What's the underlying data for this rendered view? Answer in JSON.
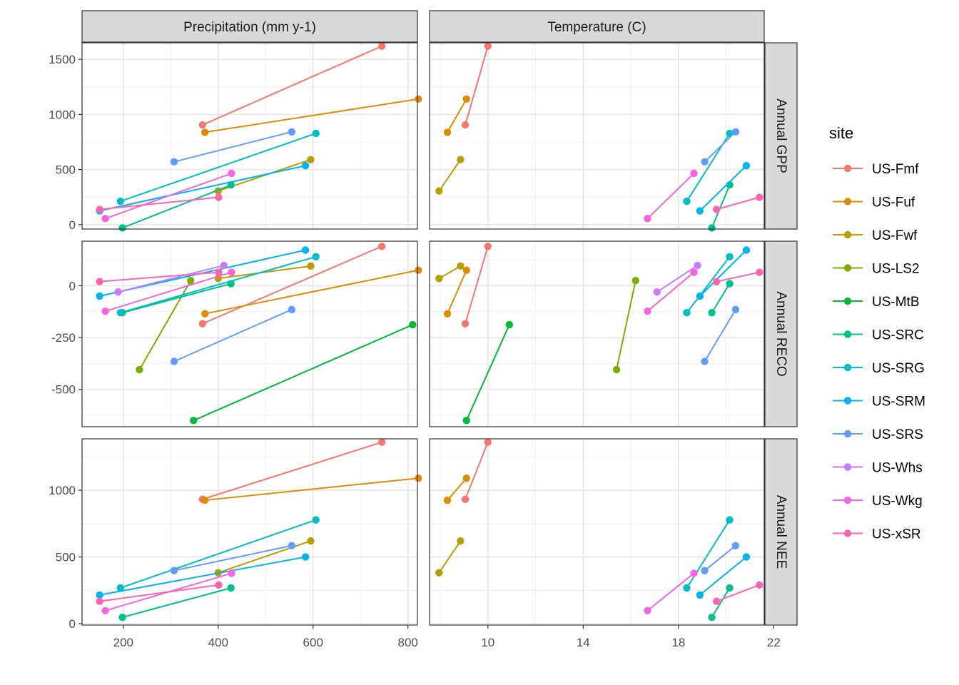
{
  "chart_data": {
    "type": "line",
    "facet_columns": [
      {
        "key": "precip",
        "label": "Precipitation (mm y-1)",
        "xlim": [
          113,
          820
        ],
        "ticks": [
          200,
          400,
          600,
          800
        ]
      },
      {
        "key": "temp",
        "label": "Temperature (C)",
        "xlim": [
          7.55,
          21.6
        ],
        "ticks": [
          10,
          14,
          18,
          22
        ]
      }
    ],
    "facet_rows": [
      {
        "key": "gpp",
        "label": "Annual GPP",
        "ylim": [
          -40,
          1650
        ],
        "ticks": [
          0,
          500,
          1000,
          1500
        ],
        "tick_labels": [
          "0",
          "500",
          "1000",
          "1500"
        ]
      },
      {
        "key": "reco",
        "label": "Annual RECO",
        "ylim": [
          -680,
          215
        ],
        "ticks": [
          -500,
          -250,
          0
        ],
        "tick_labels": [
          "-500",
          "-250",
          "0"
        ]
      },
      {
        "key": "nee",
        "label": "Annual NEE",
        "ylim": [
          -10,
          1385
        ],
        "ticks": [
          0,
          500,
          1000
        ],
        "tick_labels": [
          "0",
          "500",
          "1000"
        ]
      }
    ],
    "legend": {
      "title": "site",
      "position": "right"
    },
    "grid": true,
    "series": [
      {
        "name": "US-Fmf",
        "color": "#F8766D",
        "precip": {
          "x": [
            367,
            745
          ],
          "gpp": [
            905,
            1620
          ],
          "reco": [
            -183,
            190
          ],
          "nee": [
            932,
            1360
          ]
        },
        "temp": {
          "x": [
            9.05,
            10.0
          ],
          "gpp": [
            905,
            1620
          ],
          "reco": [
            -183,
            190
          ],
          "nee": [
            932,
            1360
          ]
        }
      },
      {
        "name": "US-Fuf",
        "color": "#DE8C00",
        "precip": {
          "x": [
            372,
            822
          ],
          "gpp": [
            838,
            1140
          ],
          "reco": [
            -135,
            75
          ],
          "nee": [
            925,
            1090
          ]
        },
        "temp": {
          "x": [
            8.3,
            9.1
          ],
          "gpp": [
            838,
            1140
          ],
          "reco": [
            -135,
            75
          ],
          "nee": [
            925,
            1090
          ]
        }
      },
      {
        "name": "US-Fwf",
        "color": "#B79F00",
        "precip": {
          "x": [
            400,
            595
          ],
          "gpp": [
            305,
            590
          ],
          "reco": [
            35,
            95
          ],
          "nee": [
            382,
            620
          ]
        },
        "temp": {
          "x": [
            7.95,
            8.85
          ],
          "gpp": [
            305,
            590
          ],
          "reco": [
            35,
            95
          ],
          "nee": [
            382,
            620
          ]
        }
      },
      {
        "name": "US-LS2",
        "color": "#7CAE00",
        "precip": {
          "x": [
            234,
            342
          ],
          "reco": [
            -405,
            25
          ]
        },
        "temp": {
          "x": [
            15.4,
            16.2
          ],
          "reco": [
            -405,
            25
          ]
        }
      },
      {
        "name": "US-MtB",
        "color": "#00BA38",
        "precip": {
          "x": [
            348,
            810
          ],
          "reco": [
            -650,
            -188
          ]
        },
        "temp": {
          "x": [
            9.1,
            10.9
          ],
          "reco": [
            -650,
            -188
          ]
        }
      },
      {
        "name": "US-SRC",
        "color": "#00C08B",
        "precip": {
          "x": [
            198,
            427
          ],
          "gpp": [
            -30,
            360
          ],
          "reco": [
            -130,
            10
          ],
          "nee": [
            48,
            268
          ]
        },
        "temp": {
          "x": [
            19.4,
            20.15
          ],
          "gpp": [
            -30,
            360
          ],
          "reco": [
            -130,
            10
          ],
          "nee": [
            48,
            268
          ]
        }
      },
      {
        "name": "US-SRG",
        "color": "#00BFC4",
        "precip": {
          "x": [
            194,
            606
          ],
          "gpp": [
            212,
            828
          ],
          "reco": [
            -130,
            140
          ],
          "nee": [
            268,
            778
          ]
        },
        "temp": {
          "x": [
            18.35,
            20.15
          ],
          "gpp": [
            212,
            828
          ],
          "reco": [
            -130,
            140
          ],
          "nee": [
            268,
            778
          ]
        }
      },
      {
        "name": "US-SRM",
        "color": "#00B4F0",
        "precip": {
          "x": [
            150,
            584
          ],
          "gpp": [
            125,
            535
          ],
          "reco": [
            -50,
            172
          ],
          "nee": [
            215,
            500
          ]
        },
        "temp": {
          "x": [
            18.9,
            20.85
          ],
          "gpp": [
            125,
            535
          ],
          "reco": [
            -50,
            172
          ],
          "nee": [
            215,
            500
          ]
        }
      },
      {
        "name": "US-SRS",
        "color": "#619CFF",
        "precip": {
          "x": [
            307,
            555
          ],
          "gpp": [
            570,
            842
          ],
          "reco": [
            -365,
            -115
          ],
          "nee": [
            398,
            585
          ]
        },
        "temp": {
          "x": [
            19.1,
            20.4
          ],
          "gpp": [
            570,
            842
          ],
          "reco": [
            -365,
            -115
          ],
          "nee": [
            398,
            585
          ]
        }
      },
      {
        "name": "US-Whs",
        "color": "#C77CFF",
        "precip": {
          "x": [
            189,
            412
          ],
          "reco": [
            -30,
            98
          ]
        },
        "temp": {
          "x": [
            17.1,
            18.8
          ],
          "reco": [
            -30,
            98
          ]
        }
      },
      {
        "name": "US-Wkg",
        "color": "#F564E3",
        "precip": {
          "x": [
            162,
            428
          ],
          "gpp": [
            55,
            465
          ],
          "reco": [
            -123,
            65
          ],
          "nee": [
            98,
            378
          ]
        },
        "temp": {
          "x": [
            16.7,
            18.65
          ],
          "gpp": [
            55,
            465
          ],
          "reco": [
            -123,
            65
          ],
          "nee": [
            98,
            378
          ]
        }
      },
      {
        "name": "US-xSR",
        "color": "#FF64B0",
        "precip": {
          "x": [
            150,
            401
          ],
          "gpp": [
            138,
            248
          ],
          "reco": [
            20,
            65
          ],
          "nee": [
            168,
            290
          ]
        },
        "temp": {
          "x": [
            19.6,
            21.4
          ],
          "gpp": [
            138,
            248
          ],
          "reco": [
            20,
            65
          ],
          "nee": [
            168,
            290
          ]
        }
      }
    ]
  }
}
